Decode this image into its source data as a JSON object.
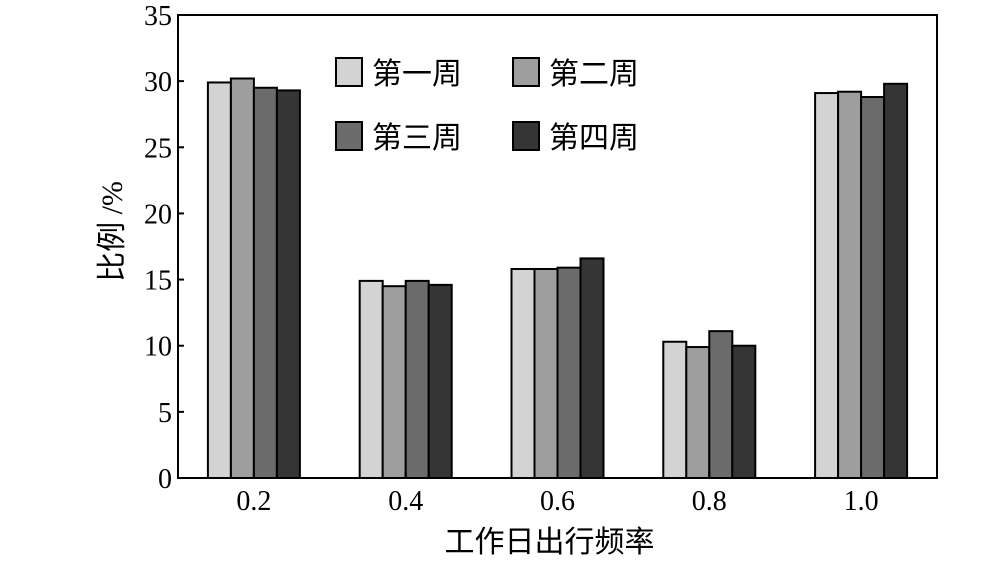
{
  "chart_data": {
    "type": "bar",
    "title": "",
    "xlabel": "工作日出行频率",
    "ylabel": "比例 /%",
    "categories": [
      "0.2",
      "0.4",
      "0.6",
      "0.8",
      "1.0"
    ],
    "ylim": [
      0,
      35
    ],
    "yticks": [
      "0",
      "5",
      "10",
      "15",
      "20",
      "25",
      "30",
      "35"
    ],
    "grid": false,
    "legend_position": "top-center",
    "series": [
      {
        "name": "第一周",
        "color": "#d3d3d3",
        "values": [
          29.9,
          14.9,
          15.8,
          10.3,
          29.1
        ]
      },
      {
        "name": "第二周",
        "color": "#9e9e9e",
        "values": [
          30.2,
          14.5,
          15.8,
          9.9,
          29.2
        ]
      },
      {
        "name": "第三周",
        "color": "#6b6b6b",
        "values": [
          29.5,
          14.9,
          15.9,
          11.1,
          28.8
        ]
      },
      {
        "name": "第四周",
        "color": "#353535",
        "values": [
          29.3,
          14.6,
          16.6,
          10.0,
          29.8
        ]
      }
    ]
  }
}
